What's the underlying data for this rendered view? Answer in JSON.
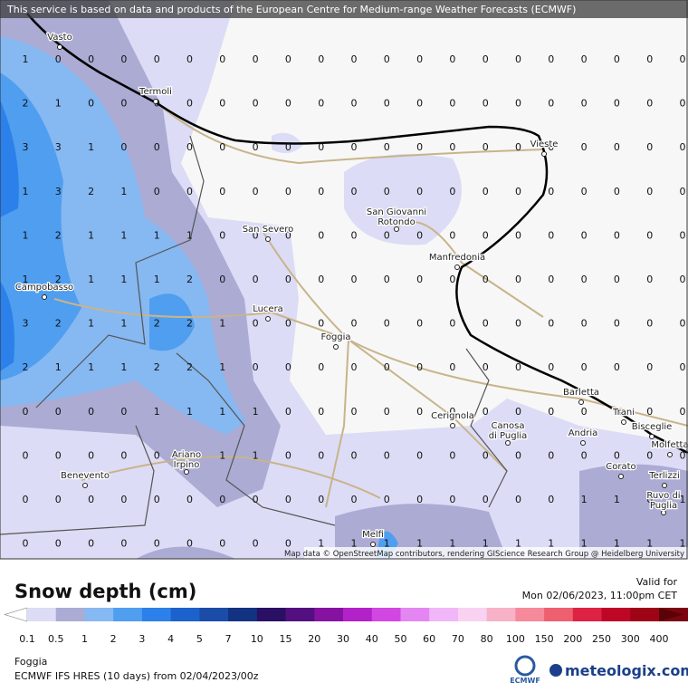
{
  "header": {
    "notice": "This service is based on data and products of the European Centre for Medium-range Weather Forecasts (ECMWF)"
  },
  "map": {
    "places": [
      [
        "Vasto"
      ],
      [
        "Termoli"
      ],
      [
        "Vieste"
      ],
      [
        "San Giovanni",
        "Rotondo"
      ],
      [
        "San Severo"
      ],
      [
        "Manfredonia"
      ],
      [
        "Campobasso"
      ],
      [
        "Lucera"
      ],
      [
        "Foggia"
      ],
      [
        "Barletta"
      ],
      [
        "Trani"
      ],
      [
        "Bisceglie"
      ],
      [
        "Cerignola"
      ],
      [
        "Canosa",
        "di Puglia"
      ],
      [
        "Andria"
      ],
      [
        "Molfetta"
      ],
      [
        "Benevento"
      ],
      [
        "Ariano",
        "Irpino"
      ],
      [
        "Corato"
      ],
      [
        "Terlizzi"
      ],
      [
        "Ruvo di",
        "Puglia"
      ],
      [
        "Melfi"
      ]
    ],
    "grid": [
      [
        1,
        0,
        0,
        0,
        0,
        0,
        0,
        0,
        0,
        0,
        0,
        0,
        0,
        0,
        0,
        0,
        0,
        0,
        0,
        0,
        0
      ],
      [
        2,
        1,
        0,
        0,
        0,
        0,
        0,
        0,
        0,
        0,
        0,
        0,
        0,
        0,
        0,
        0,
        0,
        0,
        0,
        0,
        0
      ],
      [
        3,
        3,
        1,
        0,
        0,
        0,
        0,
        0,
        0,
        0,
        0,
        0,
        0,
        0,
        0,
        0,
        0,
        0,
        0,
        0,
        0
      ],
      [
        1,
        3,
        2,
        1,
        0,
        0,
        0,
        0,
        0,
        0,
        0,
        0,
        0,
        0,
        0,
        0,
        0,
        0,
        0,
        0,
        0
      ],
      [
        1,
        2,
        1,
        1,
        1,
        1,
        0,
        0,
        0,
        0,
        0,
        0,
        0,
        0,
        0,
        0,
        0,
        0,
        0,
        0,
        0
      ],
      [
        1,
        2,
        1,
        1,
        1,
        2,
        0,
        0,
        0,
        0,
        0,
        0,
        0,
        0,
        0,
        0,
        0,
        0,
        0,
        0,
        0
      ],
      [
        3,
        2,
        1,
        1,
        2,
        2,
        1,
        0,
        0,
        0,
        0,
        0,
        0,
        0,
        0,
        0,
        0,
        0,
        0,
        0,
        0
      ],
      [
        2,
        1,
        1,
        1,
        2,
        2,
        1,
        0,
        0,
        0,
        0,
        0,
        0,
        0,
        0,
        0,
        0,
        0,
        0,
        0,
        0
      ],
      [
        0,
        0,
        0,
        0,
        1,
        1,
        1,
        1,
        0,
        0,
        0,
        0,
        0,
        0,
        0,
        0,
        0,
        0,
        0,
        0,
        0
      ],
      [
        0,
        0,
        0,
        0,
        0,
        0,
        1,
        1,
        0,
        0,
        0,
        0,
        0,
        0,
        0,
        0,
        0,
        0,
        0,
        0,
        0
      ],
      [
        0,
        0,
        0,
        0,
        0,
        0,
        0,
        0,
        0,
        0,
        0,
        0,
        0,
        0,
        0,
        0,
        0,
        1,
        1,
        0,
        1
      ],
      [
        0,
        0,
        0,
        0,
        0,
        0,
        0,
        0,
        0,
        1,
        1,
        1,
        1,
        1,
        1,
        1,
        1,
        1,
        1,
        1,
        1
      ]
    ],
    "attribution": "Map data © OpenStreetMap contributors, rendering GIScience Research Group @ Heidelberg University"
  },
  "legend": {
    "title": "Snow depth (cm)",
    "labels": [
      0.1,
      0.5,
      1,
      2,
      3,
      4,
      5,
      7,
      10,
      15,
      20,
      30,
      40,
      50,
      60,
      70,
      80,
      100,
      150,
      200,
      250,
      300,
      400
    ],
    "colors": [
      "#ffffff",
      "#dcdcf6",
      "#ababd4",
      "#86b8f2",
      "#4f9ef0",
      "#2c80ea",
      "#1c62cc",
      "#1a4ca8",
      "#143282",
      "#2a1064",
      "#541080",
      "#8612a2",
      "#b222c8",
      "#d246e2",
      "#e486f2",
      "#f0b6f8",
      "#f8d2f0",
      "#f8b2c8",
      "#f68a9a",
      "#ee6070",
      "#de2244",
      "#be0626",
      "#9e0416",
      "#7c0410",
      "#5a0208"
    ]
  },
  "footer": {
    "valid_label": "Valid for",
    "valid_time": "Mon 02/06/2023, 11:00pm CET",
    "location": "Foggia",
    "model": "ECMWF IFS HRES (10 days) from 02/04/2023/00z",
    "ecmwf": "ECMWF",
    "brand": "meteologix.com"
  }
}
